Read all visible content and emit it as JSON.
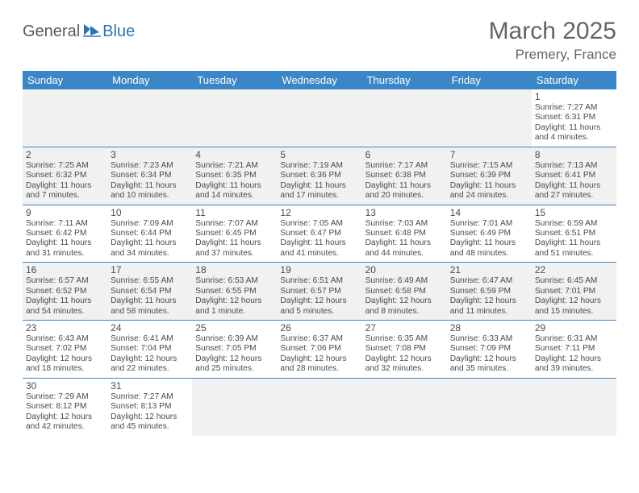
{
  "logo": {
    "text1": "General",
    "text2": "Blue"
  },
  "title": "March 2025",
  "location": "Premery, France",
  "weekdays": [
    "Sunday",
    "Monday",
    "Tuesday",
    "Wednesday",
    "Thursday",
    "Friday",
    "Saturday"
  ],
  "colors": {
    "header_bg": "#3b86c6",
    "header_fg": "#ffffff",
    "text": "#464c52",
    "alt_row": "#f1f1f1",
    "logo_gray": "#555a60",
    "logo_blue": "#2e75b6"
  },
  "weeks": [
    [
      null,
      null,
      null,
      null,
      null,
      null,
      {
        "n": "1",
        "sr": "Sunrise: 7:27 AM",
        "ss": "Sunset: 6:31 PM",
        "dl": "Daylight: 11 hours and 4 minutes."
      }
    ],
    [
      {
        "n": "2",
        "sr": "Sunrise: 7:25 AM",
        "ss": "Sunset: 6:32 PM",
        "dl": "Daylight: 11 hours and 7 minutes."
      },
      {
        "n": "3",
        "sr": "Sunrise: 7:23 AM",
        "ss": "Sunset: 6:34 PM",
        "dl": "Daylight: 11 hours and 10 minutes."
      },
      {
        "n": "4",
        "sr": "Sunrise: 7:21 AM",
        "ss": "Sunset: 6:35 PM",
        "dl": "Daylight: 11 hours and 14 minutes."
      },
      {
        "n": "5",
        "sr": "Sunrise: 7:19 AM",
        "ss": "Sunset: 6:36 PM",
        "dl": "Daylight: 11 hours and 17 minutes."
      },
      {
        "n": "6",
        "sr": "Sunrise: 7:17 AM",
        "ss": "Sunset: 6:38 PM",
        "dl": "Daylight: 11 hours and 20 minutes."
      },
      {
        "n": "7",
        "sr": "Sunrise: 7:15 AM",
        "ss": "Sunset: 6:39 PM",
        "dl": "Daylight: 11 hours and 24 minutes."
      },
      {
        "n": "8",
        "sr": "Sunrise: 7:13 AM",
        "ss": "Sunset: 6:41 PM",
        "dl": "Daylight: 11 hours and 27 minutes."
      }
    ],
    [
      {
        "n": "9",
        "sr": "Sunrise: 7:11 AM",
        "ss": "Sunset: 6:42 PM",
        "dl": "Daylight: 11 hours and 31 minutes."
      },
      {
        "n": "10",
        "sr": "Sunrise: 7:09 AM",
        "ss": "Sunset: 6:44 PM",
        "dl": "Daylight: 11 hours and 34 minutes."
      },
      {
        "n": "11",
        "sr": "Sunrise: 7:07 AM",
        "ss": "Sunset: 6:45 PM",
        "dl": "Daylight: 11 hours and 37 minutes."
      },
      {
        "n": "12",
        "sr": "Sunrise: 7:05 AM",
        "ss": "Sunset: 6:47 PM",
        "dl": "Daylight: 11 hours and 41 minutes."
      },
      {
        "n": "13",
        "sr": "Sunrise: 7:03 AM",
        "ss": "Sunset: 6:48 PM",
        "dl": "Daylight: 11 hours and 44 minutes."
      },
      {
        "n": "14",
        "sr": "Sunrise: 7:01 AM",
        "ss": "Sunset: 6:49 PM",
        "dl": "Daylight: 11 hours and 48 minutes."
      },
      {
        "n": "15",
        "sr": "Sunrise: 6:59 AM",
        "ss": "Sunset: 6:51 PM",
        "dl": "Daylight: 11 hours and 51 minutes."
      }
    ],
    [
      {
        "n": "16",
        "sr": "Sunrise: 6:57 AM",
        "ss": "Sunset: 6:52 PM",
        "dl": "Daylight: 11 hours and 54 minutes."
      },
      {
        "n": "17",
        "sr": "Sunrise: 6:55 AM",
        "ss": "Sunset: 6:54 PM",
        "dl": "Daylight: 11 hours and 58 minutes."
      },
      {
        "n": "18",
        "sr": "Sunrise: 6:53 AM",
        "ss": "Sunset: 6:55 PM",
        "dl": "Daylight: 12 hours and 1 minute."
      },
      {
        "n": "19",
        "sr": "Sunrise: 6:51 AM",
        "ss": "Sunset: 6:57 PM",
        "dl": "Daylight: 12 hours and 5 minutes."
      },
      {
        "n": "20",
        "sr": "Sunrise: 6:49 AM",
        "ss": "Sunset: 6:58 PM",
        "dl": "Daylight: 12 hours and 8 minutes."
      },
      {
        "n": "21",
        "sr": "Sunrise: 6:47 AM",
        "ss": "Sunset: 6:59 PM",
        "dl": "Daylight: 12 hours and 11 minutes."
      },
      {
        "n": "22",
        "sr": "Sunrise: 6:45 AM",
        "ss": "Sunset: 7:01 PM",
        "dl": "Daylight: 12 hours and 15 minutes."
      }
    ],
    [
      {
        "n": "23",
        "sr": "Sunrise: 6:43 AM",
        "ss": "Sunset: 7:02 PM",
        "dl": "Daylight: 12 hours and 18 minutes."
      },
      {
        "n": "24",
        "sr": "Sunrise: 6:41 AM",
        "ss": "Sunset: 7:04 PM",
        "dl": "Daylight: 12 hours and 22 minutes."
      },
      {
        "n": "25",
        "sr": "Sunrise: 6:39 AM",
        "ss": "Sunset: 7:05 PM",
        "dl": "Daylight: 12 hours and 25 minutes."
      },
      {
        "n": "26",
        "sr": "Sunrise: 6:37 AM",
        "ss": "Sunset: 7:06 PM",
        "dl": "Daylight: 12 hours and 28 minutes."
      },
      {
        "n": "27",
        "sr": "Sunrise: 6:35 AM",
        "ss": "Sunset: 7:08 PM",
        "dl": "Daylight: 12 hours and 32 minutes."
      },
      {
        "n": "28",
        "sr": "Sunrise: 6:33 AM",
        "ss": "Sunset: 7:09 PM",
        "dl": "Daylight: 12 hours and 35 minutes."
      },
      {
        "n": "29",
        "sr": "Sunrise: 6:31 AM",
        "ss": "Sunset: 7:11 PM",
        "dl": "Daylight: 12 hours and 39 minutes."
      }
    ],
    [
      {
        "n": "30",
        "sr": "Sunrise: 7:29 AM",
        "ss": "Sunset: 8:12 PM",
        "dl": "Daylight: 12 hours and 42 minutes."
      },
      {
        "n": "31",
        "sr": "Sunrise: 7:27 AM",
        "ss": "Sunset: 8:13 PM",
        "dl": "Daylight: 12 hours and 45 minutes."
      },
      null,
      null,
      null,
      null,
      null
    ]
  ]
}
